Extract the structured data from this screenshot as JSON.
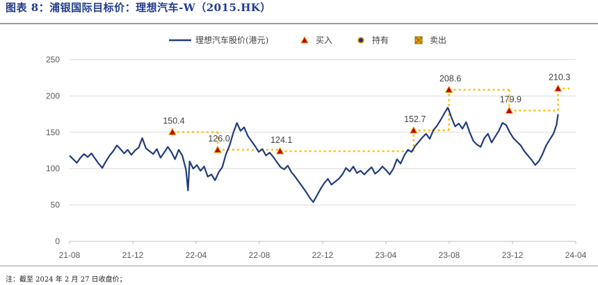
{
  "figure": {
    "title": "图表 8：浦银国际目标价：理想汽车-W（2015.HK）",
    "footnote": "注：截至 2024 年 2 月 27 日收盘价；"
  },
  "colors": {
    "price": "#1f3b7c",
    "buy": "#c00000",
    "buy_fill": "#f5a300",
    "hold": "#1f3b7c",
    "hold_fill": "#f5a300",
    "target_line": "#ffc000",
    "grid": "#d9d9d9"
  },
  "chart_data": {
    "type": "line",
    "title": "",
    "xlabel": "",
    "ylabel": "",
    "ylim": [
      0,
      250
    ],
    "y_ticks": [
      0,
      50,
      100,
      150,
      200,
      250
    ],
    "x_ticks": [
      "21-08",
      "21-12",
      "22-04",
      "22-08",
      "22-12",
      "23-04",
      "23-08",
      "23-12",
      "24-04"
    ],
    "x_range": [
      "2021-08-01",
      "2024-04-01"
    ],
    "grid": "horizontal",
    "legend": {
      "placement": "top-center",
      "items": [
        {
          "key": "price",
          "label": "理想汽车股价(港元)",
          "icon": "line"
        },
        {
          "key": "buy",
          "label": "买入",
          "icon": "triangle"
        },
        {
          "key": "hold",
          "label": "持有",
          "icon": "circle"
        },
        {
          "key": "sell",
          "label": "卖出",
          "icon": "x-square"
        }
      ]
    },
    "series": [
      {
        "key": "price",
        "type": "line",
        "points": [
          [
            "2021-08-01",
            118
          ],
          [
            "2021-08-08",
            113
          ],
          [
            "2021-08-15",
            108
          ],
          [
            "2021-08-22",
            115
          ],
          [
            "2021-08-29",
            120
          ],
          [
            "2021-09-05",
            116
          ],
          [
            "2021-09-12",
            121
          ],
          [
            "2021-09-19",
            114
          ],
          [
            "2021-09-26",
            107
          ],
          [
            "2021-10-03",
            101
          ],
          [
            "2021-10-10",
            110
          ],
          [
            "2021-10-17",
            118
          ],
          [
            "2021-10-24",
            124
          ],
          [
            "2021-10-31",
            132
          ],
          [
            "2021-11-07",
            127
          ],
          [
            "2021-11-14",
            121
          ],
          [
            "2021-11-21",
            126
          ],
          [
            "2021-11-28",
            119
          ],
          [
            "2021-12-05",
            125
          ],
          [
            "2021-12-12",
            129
          ],
          [
            "2021-12-19",
            142
          ],
          [
            "2021-12-26",
            128
          ],
          [
            "2022-01-02",
            124
          ],
          [
            "2022-01-09",
            120
          ],
          [
            "2022-01-16",
            127
          ],
          [
            "2022-01-23",
            115
          ],
          [
            "2022-01-30",
            122
          ],
          [
            "2022-02-06",
            130
          ],
          [
            "2022-02-13",
            123
          ],
          [
            "2022-02-20",
            113
          ],
          [
            "2022-02-27",
            126
          ],
          [
            "2022-03-06",
            118
          ],
          [
            "2022-03-13",
            99
          ],
          [
            "2022-03-17",
            70
          ],
          [
            "2022-03-20",
            110
          ],
          [
            "2022-03-27",
            100
          ],
          [
            "2022-04-03",
            105
          ],
          [
            "2022-04-10",
            97
          ],
          [
            "2022-04-17",
            103
          ],
          [
            "2022-04-24",
            89
          ],
          [
            "2022-05-01",
            92
          ],
          [
            "2022-05-08",
            84
          ],
          [
            "2022-05-15",
            95
          ],
          [
            "2022-05-22",
            102
          ],
          [
            "2022-05-29",
            120
          ],
          [
            "2022-06-05",
            132
          ],
          [
            "2022-06-12",
            149
          ],
          [
            "2022-06-19",
            163
          ],
          [
            "2022-06-26",
            152
          ],
          [
            "2022-07-03",
            157
          ],
          [
            "2022-07-10",
            145
          ],
          [
            "2022-07-17",
            138
          ],
          [
            "2022-07-24",
            131
          ],
          [
            "2022-07-31",
            123
          ],
          [
            "2022-08-07",
            127
          ],
          [
            "2022-08-14",
            118
          ],
          [
            "2022-08-21",
            122
          ],
          [
            "2022-08-28",
            116
          ],
          [
            "2022-09-04",
            109
          ],
          [
            "2022-09-11",
            102
          ],
          [
            "2022-09-18",
            99
          ],
          [
            "2022-09-25",
            104
          ],
          [
            "2022-10-02",
            95
          ],
          [
            "2022-10-09",
            89
          ],
          [
            "2022-10-16",
            82
          ],
          [
            "2022-10-23",
            75
          ],
          [
            "2022-10-30",
            68
          ],
          [
            "2022-11-06",
            60
          ],
          [
            "2022-11-13",
            54
          ],
          [
            "2022-11-20",
            63
          ],
          [
            "2022-11-27",
            72
          ],
          [
            "2022-12-04",
            80
          ],
          [
            "2022-12-11",
            86
          ],
          [
            "2022-12-18",
            78
          ],
          [
            "2022-12-25",
            82
          ],
          [
            "2023-01-01",
            86
          ],
          [
            "2023-01-08",
            92
          ],
          [
            "2023-01-15",
            101
          ],
          [
            "2023-01-22",
            96
          ],
          [
            "2023-01-29",
            103
          ],
          [
            "2023-02-05",
            94
          ],
          [
            "2023-02-12",
            97
          ],
          [
            "2023-02-19",
            92
          ],
          [
            "2023-02-26",
            97
          ],
          [
            "2023-03-05",
            102
          ],
          [
            "2023-03-12",
            93
          ],
          [
            "2023-03-19",
            97
          ],
          [
            "2023-03-26",
            103
          ],
          [
            "2023-04-02",
            98
          ],
          [
            "2023-04-09",
            92
          ],
          [
            "2023-04-16",
            100
          ],
          [
            "2023-04-23",
            113
          ],
          [
            "2023-04-30",
            107
          ],
          [
            "2023-05-07",
            118
          ],
          [
            "2023-05-14",
            126
          ],
          [
            "2023-05-21",
            123
          ],
          [
            "2023-05-28",
            131
          ],
          [
            "2023-06-04",
            137
          ],
          [
            "2023-06-11",
            143
          ],
          [
            "2023-06-18",
            148
          ],
          [
            "2023-06-25",
            141
          ],
          [
            "2023-07-02",
            153
          ],
          [
            "2023-07-09",
            159
          ],
          [
            "2023-07-16",
            167
          ],
          [
            "2023-07-23",
            176
          ],
          [
            "2023-07-30",
            184
          ],
          [
            "2023-08-06",
            170
          ],
          [
            "2023-08-13",
            158
          ],
          [
            "2023-08-20",
            162
          ],
          [
            "2023-08-27",
            155
          ],
          [
            "2023-09-03",
            164
          ],
          [
            "2023-09-10",
            150
          ],
          [
            "2023-09-17",
            138
          ],
          [
            "2023-09-24",
            133
          ],
          [
            "2023-10-01",
            130
          ],
          [
            "2023-10-08",
            142
          ],
          [
            "2023-10-15",
            148
          ],
          [
            "2023-10-22",
            136
          ],
          [
            "2023-10-29",
            144
          ],
          [
            "2023-11-05",
            152
          ],
          [
            "2023-11-12",
            163
          ],
          [
            "2023-11-19",
            160
          ],
          [
            "2023-11-26",
            150
          ],
          [
            "2023-12-03",
            142
          ],
          [
            "2023-12-10",
            137
          ],
          [
            "2023-12-17",
            132
          ],
          [
            "2023-12-24",
            124
          ],
          [
            "2023-12-31",
            118
          ],
          [
            "2024-01-07",
            112
          ],
          [
            "2024-01-14",
            105
          ],
          [
            "2024-01-21",
            110
          ],
          [
            "2024-01-28",
            120
          ],
          [
            "2024-02-04",
            132
          ],
          [
            "2024-02-11",
            140
          ],
          [
            "2024-02-18",
            148
          ],
          [
            "2024-02-24",
            160
          ],
          [
            "2024-02-27",
            175
          ]
        ]
      }
    ],
    "targets": [
      {
        "rating": "buy",
        "date": "2022-02-15",
        "end": "2022-05-13",
        "value": 150.4,
        "label": "150.4"
      },
      {
        "rating": "buy",
        "date": "2022-05-13",
        "end": "2022-09-10",
        "value": 126.0,
        "label": "126.0"
      },
      {
        "rating": "buy",
        "date": "2022-09-10",
        "end": "2023-05-25",
        "value": 124.1,
        "label": "124.1"
      },
      {
        "rating": "buy",
        "date": "2023-05-25",
        "end": "2023-08-01",
        "value": 152.7,
        "label": "152.7"
      },
      {
        "rating": "buy",
        "date": "2023-08-01",
        "end": "2023-11-25",
        "value": 208.6,
        "label": "208.6"
      },
      {
        "rating": "buy",
        "date": "2023-11-25",
        "end": "2024-02-27",
        "value": 179.9,
        "label": "179.9"
      },
      {
        "rating": "buy",
        "date": "2024-02-27",
        "end": "2024-03-20",
        "value": 210.3,
        "label": "210.3"
      }
    ]
  }
}
